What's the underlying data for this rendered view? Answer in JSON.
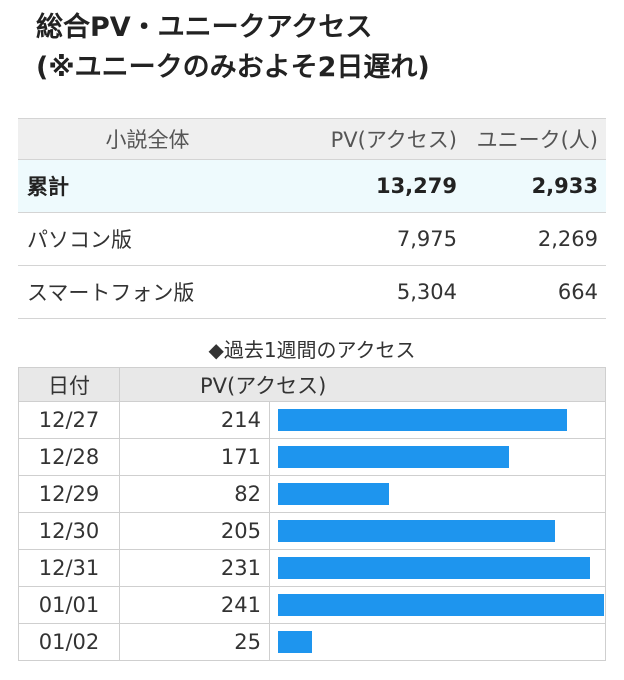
{
  "title": {
    "line1": "総合PV・ユニークアクセス",
    "line2": "(※ユニークのみおよそ2日遅れ)"
  },
  "summary": {
    "headers": [
      "小説全体",
      "PV(アクセス)",
      "ユニーク(人)"
    ],
    "rows": [
      {
        "label": "累計",
        "pv": "13,279",
        "unique": "2,933"
      },
      {
        "label": "パソコン版",
        "pv": "7,975",
        "unique": "2,269"
      },
      {
        "label": "スマートフォン版",
        "pv": "5,304",
        "unique": "664"
      }
    ]
  },
  "weekly": {
    "title": "◆過去1週間のアクセス",
    "headers": [
      "日付",
      "PV(アクセス)"
    ],
    "rows": [
      {
        "date": "12/27",
        "value": "214"
      },
      {
        "date": "12/28",
        "value": "171"
      },
      {
        "date": "12/29",
        "value": "82"
      },
      {
        "date": "12/30",
        "value": "205"
      },
      {
        "date": "12/31",
        "value": "231"
      },
      {
        "date": "01/01",
        "value": "241"
      },
      {
        "date": "01/02",
        "value": "25"
      }
    ]
  },
  "colors": {
    "bar": "#1e95ee",
    "total_row": "#eefafd",
    "header_bg": "#efefef"
  }
}
